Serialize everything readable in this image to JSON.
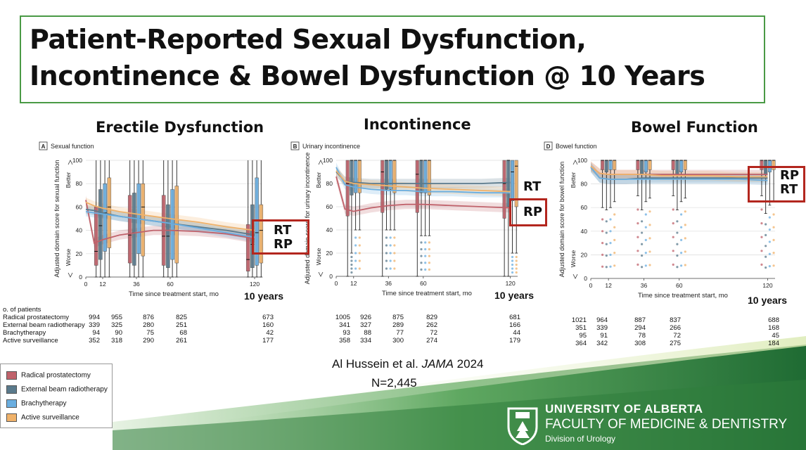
{
  "slide": {
    "title_line1": "Patient-Reported Sexual Dysfunction,",
    "title_line2": "Incontinence & Bowel Dysfunction @ 10 Years",
    "citation_author": "Al Hussein et al.",
    "citation_journal": "JAMA",
    "citation_year": "2024",
    "n_total": "N=2,445"
  },
  "footer": {
    "university": "UNIVERSITY OF ALBERTA",
    "faculty": "FACULTY OF MEDICINE & DENTISTRY",
    "division": "Division of Urology"
  },
  "colors": {
    "radical_prostatectomy": "#c0626b",
    "external_beam_radiotherapy": "#5a7a8c",
    "brachytherapy": "#6aaee0",
    "active_surveillance": "#f0b26a",
    "callout_box": "#b3261e",
    "frame_green": "#4a9a45"
  },
  "legend": {
    "items": [
      "Radical prostatectomy",
      "External beam radiotherapy",
      "Brachytherapy",
      "Active surveillance"
    ]
  },
  "panels": [
    {
      "heading": "Erectile Dysfunction",
      "callout_top": "RT",
      "callout_bottom": "RP",
      "ten_years": "10 years",
      "ntable": {
        "title": "o. of patients",
        "rows": [
          {
            "label": "Radical prostatectomy",
            "values": [
              "994",
              "955",
              "876",
              "825",
              "673"
            ]
          },
          {
            "label": "External beam radiotherapy",
            "values": [
              "339",
              "325",
              "280",
              "251",
              "160"
            ]
          },
          {
            "label": "Brachytherapy",
            "values": [
              "94",
              "90",
              "75",
              "68",
              "42"
            ]
          },
          {
            "label": "Active surveillance",
            "values": [
              "352",
              "318",
              "290",
              "261",
              "177"
            ]
          }
        ]
      }
    },
    {
      "heading": "Incontinence",
      "callout_top": "RT",
      "callout_bottom": "RP",
      "ten_years": "10 years",
      "ntable": {
        "rows": [
          {
            "values": [
              "1005",
              "926",
              "875",
              "829",
              "681"
            ]
          },
          {
            "values": [
              "341",
              "327",
              "289",
              "262",
              "166"
            ]
          },
          {
            "values": [
              "93",
              "88",
              "77",
              "72",
              "44"
            ]
          },
          {
            "values": [
              "358",
              "334",
              "300",
              "274",
              "179"
            ]
          }
        ]
      }
    },
    {
      "heading": "Bowel Function",
      "callout_top": "RP",
      "callout_bottom": "RT",
      "ten_years": "10 years",
      "ntable": {
        "rows": [
          {
            "values": [
              "1021",
              "964",
              "887",
              "837",
              "688"
            ]
          },
          {
            "values": [
              "351",
              "339",
              "294",
              "266",
              "168"
            ]
          },
          {
            "values": [
              "95",
              "91",
              "78",
              "72",
              "45"
            ]
          },
          {
            "values": [
              "364",
              "342",
              "308",
              "275",
              "184"
            ]
          }
        ]
      }
    }
  ],
  "chart_data": [
    {
      "type": "line",
      "panel_label": "A",
      "title": "Sexual function",
      "xlabel": "Time since treatment start, mo",
      "ylabel": "Adjusted domain score for sexual function",
      "y_better": "Better",
      "y_worse": "Worse",
      "x_ticks": [
        0,
        12,
        36,
        60,
        120
      ],
      "y_ticks": [
        0,
        20,
        40,
        60,
        80,
        100
      ],
      "xlim": [
        0,
        125
      ],
      "ylim": [
        0,
        100
      ],
      "box_months": [
        12,
        36,
        60,
        120
      ],
      "series": [
        {
          "name": "Radical prostatectomy",
          "x": [
            0,
            6,
            12,
            24,
            36,
            48,
            60,
            80,
            100,
            120
          ],
          "y": [
            66,
            29,
            32,
            36,
            38,
            40,
            40,
            39,
            37,
            33
          ]
        },
        {
          "name": "External beam radiotherapy",
          "x": [
            0,
            6,
            12,
            24,
            36,
            48,
            60,
            80,
            100,
            120
          ],
          "y": [
            58,
            57,
            55,
            52,
            50,
            48,
            46,
            43,
            40,
            36
          ]
        },
        {
          "name": "Brachytherapy",
          "x": [
            0,
            6,
            12,
            24,
            36,
            48,
            60,
            80,
            100,
            120
          ],
          "y": [
            56,
            55,
            54,
            52,
            50,
            48,
            46,
            42,
            38,
            34
          ]
        },
        {
          "name": "Active surveillance",
          "x": [
            0,
            6,
            12,
            24,
            36,
            48,
            60,
            80,
            100,
            120
          ],
          "y": [
            64,
            61,
            59,
            56,
            54,
            52,
            50,
            47,
            43,
            40
          ]
        }
      ],
      "boxes": [
        {
          "series": 0,
          "x": 12,
          "q1": 10,
          "median": 22,
          "q3": 60,
          "low": 0,
          "high": 100
        },
        {
          "series": 1,
          "x": 12,
          "q1": 15,
          "median": 44,
          "q3": 75,
          "low": 0,
          "high": 100
        },
        {
          "series": 2,
          "x": 12,
          "q1": 22,
          "median": 55,
          "q3": 80,
          "low": 0,
          "high": 100
        },
        {
          "series": 3,
          "x": 12,
          "q1": 25,
          "median": 60,
          "q3": 85,
          "low": 0,
          "high": 100
        },
        {
          "series": 0,
          "x": 36,
          "q1": 12,
          "median": 36,
          "q3": 70,
          "low": 0,
          "high": 100
        },
        {
          "series": 1,
          "x": 36,
          "q1": 10,
          "median": 38,
          "q3": 72,
          "low": 0,
          "high": 100
        },
        {
          "series": 2,
          "x": 36,
          "q1": 20,
          "median": 50,
          "q3": 80,
          "low": 0,
          "high": 100
        },
        {
          "series": 3,
          "x": 36,
          "q1": 18,
          "median": 60,
          "q3": 80,
          "low": 0,
          "high": 100
        },
        {
          "series": 0,
          "x": 60,
          "q1": 10,
          "median": 35,
          "q3": 70,
          "low": 0,
          "high": 100
        },
        {
          "series": 1,
          "x": 60,
          "q1": 8,
          "median": 35,
          "q3": 62,
          "low": 0,
          "high": 100
        },
        {
          "series": 2,
          "x": 60,
          "q1": 15,
          "median": 40,
          "q3": 75,
          "low": 0,
          "high": 100
        },
        {
          "series": 3,
          "x": 60,
          "q1": 12,
          "median": 40,
          "q3": 78,
          "low": 0,
          "high": 100
        },
        {
          "series": 0,
          "x": 120,
          "q1": 5,
          "median": 15,
          "q3": 45,
          "low": 0,
          "high": 100
        },
        {
          "series": 1,
          "x": 120,
          "q1": 8,
          "median": 28,
          "q3": 62,
          "low": 0,
          "high": 100
        },
        {
          "series": 2,
          "x": 120,
          "q1": 10,
          "median": 38,
          "q3": 85,
          "low": 0,
          "high": 100
        },
        {
          "series": 3,
          "x": 120,
          "q1": 12,
          "median": 40,
          "q3": 62,
          "low": 0,
          "high": 100
        }
      ]
    },
    {
      "type": "line",
      "panel_label": "B",
      "title": "Urinary incontinence",
      "xlabel": "Time since treatment start, mo",
      "ylabel": "Adjusted domain score for urinary incontinence",
      "y_better": "Better",
      "y_worse": "Worse",
      "x_ticks": [
        0,
        12,
        36,
        60,
        120
      ],
      "y_ticks": [
        0,
        20,
        40,
        60,
        80,
        100
      ],
      "xlim": [
        0,
        125
      ],
      "ylim": [
        0,
        100
      ],
      "box_months": [
        12,
        36,
        60,
        120
      ],
      "series": [
        {
          "name": "Radical prostatectomy",
          "x": [
            0,
            6,
            12,
            24,
            36,
            48,
            60,
            80,
            100,
            120
          ],
          "y": [
            86,
            58,
            56,
            59,
            61,
            62,
            62,
            61,
            60,
            59
          ]
        },
        {
          "name": "External beam radiotherapy",
          "x": [
            0,
            6,
            12,
            24,
            36,
            48,
            60,
            80,
            100,
            120
          ],
          "y": [
            90,
            82,
            81,
            80,
            80,
            80,
            80,
            80,
            80,
            81
          ]
        },
        {
          "name": "Brachytherapy",
          "x": [
            0,
            6,
            12,
            24,
            36,
            48,
            60,
            80,
            100,
            120
          ],
          "y": [
            94,
            79,
            77,
            75,
            74,
            74,
            73,
            73,
            72,
            72
          ]
        },
        {
          "name": "Active surveillance",
          "x": [
            0,
            6,
            12,
            24,
            36,
            48,
            60,
            80,
            100,
            120
          ],
          "y": [
            91,
            82,
            80,
            79,
            78,
            77,
            76,
            75,
            74,
            73
          ]
        }
      ],
      "boxes": [
        {
          "series": 0,
          "x": 12,
          "q1": 52,
          "median": 80,
          "q3": 100,
          "low": 0,
          "high": 100
        },
        {
          "series": 1,
          "x": 12,
          "q1": 70,
          "median": 100,
          "q3": 100,
          "low": 20,
          "high": 100
        },
        {
          "series": 2,
          "x": 12,
          "q1": 72,
          "median": 100,
          "q3": 100,
          "low": 40,
          "high": 100
        },
        {
          "series": 3,
          "x": 12,
          "q1": 72,
          "median": 100,
          "q3": 100,
          "low": 40,
          "high": 100
        },
        {
          "series": 0,
          "x": 36,
          "q1": 55,
          "median": 90,
          "q3": 100,
          "low": 0,
          "high": 100
        },
        {
          "series": 1,
          "x": 36,
          "q1": 75,
          "median": 100,
          "q3": 100,
          "low": 40,
          "high": 100
        },
        {
          "series": 2,
          "x": 36,
          "q1": 75,
          "median": 100,
          "q3": 100,
          "low": 40,
          "high": 100
        },
        {
          "series": 3,
          "x": 36,
          "q1": 72,
          "median": 100,
          "q3": 100,
          "low": 40,
          "high": 100
        },
        {
          "series": 0,
          "x": 60,
          "q1": 55,
          "median": 88,
          "q3": 100,
          "low": 0,
          "high": 100
        },
        {
          "series": 1,
          "x": 60,
          "q1": 72,
          "median": 100,
          "q3": 100,
          "low": 35,
          "high": 100
        },
        {
          "series": 2,
          "x": 60,
          "q1": 72,
          "median": 100,
          "q3": 100,
          "low": 35,
          "high": 100
        },
        {
          "series": 3,
          "x": 60,
          "q1": 70,
          "median": 100,
          "q3": 100,
          "low": 35,
          "high": 100
        },
        {
          "series": 0,
          "x": 120,
          "q1": 50,
          "median": 80,
          "q3": 100,
          "low": 0,
          "high": 100
        },
        {
          "series": 1,
          "x": 120,
          "q1": 60,
          "median": 100,
          "q3": 100,
          "low": 0,
          "high": 100
        },
        {
          "series": 2,
          "x": 120,
          "q1": 65,
          "median": 90,
          "q3": 100,
          "low": 20,
          "high": 100
        },
        {
          "series": 3,
          "x": 120,
          "q1": 60,
          "median": 95,
          "q3": 100,
          "low": 20,
          "high": 100
        }
      ]
    },
    {
      "type": "line",
      "panel_label": "D",
      "title": "Bowel function",
      "xlabel": "Time since treatment start, mo",
      "ylabel": "Adjusted domain score for bowel function",
      "y_better": "Better",
      "y_worse": "Worse",
      "x_ticks": [
        0,
        12,
        36,
        60,
        120
      ],
      "y_ticks": [
        0,
        20,
        40,
        60,
        80,
        100
      ],
      "xlim": [
        0,
        125
      ],
      "ylim": [
        0,
        100
      ],
      "box_months": [
        12,
        36,
        60,
        120
      ],
      "series": [
        {
          "name": "Radical prostatectomy",
          "x": [
            0,
            6,
            12,
            24,
            36,
            48,
            60,
            80,
            100,
            120
          ],
          "y": [
            95,
            89,
            88,
            88,
            88,
            88,
            88,
            88,
            88,
            88
          ]
        },
        {
          "name": "External beam radiotherapy",
          "x": [
            0,
            6,
            12,
            24,
            36,
            48,
            60,
            80,
            100,
            120
          ],
          "y": [
            94,
            85,
            84,
            84,
            85,
            85,
            85,
            85,
            85,
            85
          ]
        },
        {
          "name": "Brachytherapy",
          "x": [
            0,
            6,
            12,
            24,
            36,
            48,
            60,
            80,
            100,
            120
          ],
          "y": [
            94,
            85,
            84,
            84,
            84,
            84,
            84,
            84,
            84,
            83
          ]
        },
        {
          "name": "Active surveillance",
          "x": [
            0,
            6,
            12,
            24,
            36,
            48,
            60,
            80,
            100,
            120
          ],
          "y": [
            95,
            89,
            88,
            88,
            88,
            87,
            87,
            87,
            86,
            86
          ]
        }
      ],
      "boxes": [
        {
          "series": 0,
          "x": 12,
          "q1": 92,
          "median": 100,
          "q3": 100,
          "low": 60,
          "high": 100
        },
        {
          "series": 1,
          "x": 12,
          "q1": 90,
          "median": 100,
          "q3": 100,
          "low": 58,
          "high": 100
        },
        {
          "series": 2,
          "x": 12,
          "q1": 92,
          "median": 100,
          "q3": 100,
          "low": 60,
          "high": 100
        },
        {
          "series": 3,
          "x": 12,
          "q1": 92,
          "median": 100,
          "q3": 100,
          "low": 65,
          "high": 100
        },
        {
          "series": 0,
          "x": 36,
          "q1": 92,
          "median": 100,
          "q3": 100,
          "low": 70,
          "high": 100
        },
        {
          "series": 1,
          "x": 36,
          "q1": 88,
          "median": 100,
          "q3": 100,
          "low": 58,
          "high": 100
        },
        {
          "series": 2,
          "x": 36,
          "q1": 90,
          "median": 100,
          "q3": 100,
          "low": 65,
          "high": 100
        },
        {
          "series": 3,
          "x": 36,
          "q1": 92,
          "median": 100,
          "q3": 100,
          "low": 68,
          "high": 100
        },
        {
          "series": 0,
          "x": 60,
          "q1": 92,
          "median": 100,
          "q3": 100,
          "low": 70,
          "high": 100
        },
        {
          "series": 1,
          "x": 60,
          "q1": 88,
          "median": 100,
          "q3": 100,
          "low": 58,
          "high": 100
        },
        {
          "series": 2,
          "x": 60,
          "q1": 90,
          "median": 100,
          "q3": 100,
          "low": 65,
          "high": 100
        },
        {
          "series": 3,
          "x": 60,
          "q1": 92,
          "median": 100,
          "q3": 100,
          "low": 68,
          "high": 100
        },
        {
          "series": 0,
          "x": 120,
          "q1": 92,
          "median": 100,
          "q3": 100,
          "low": 70,
          "high": 100
        },
        {
          "series": 1,
          "x": 120,
          "q1": 88,
          "median": 100,
          "q3": 100,
          "low": 55,
          "high": 100
        },
        {
          "series": 2,
          "x": 120,
          "q1": 90,
          "median": 100,
          "q3": 100,
          "low": 62,
          "high": 100
        },
        {
          "series": 3,
          "x": 120,
          "q1": 92,
          "median": 100,
          "q3": 100,
          "low": 65,
          "high": 100
        }
      ]
    }
  ]
}
